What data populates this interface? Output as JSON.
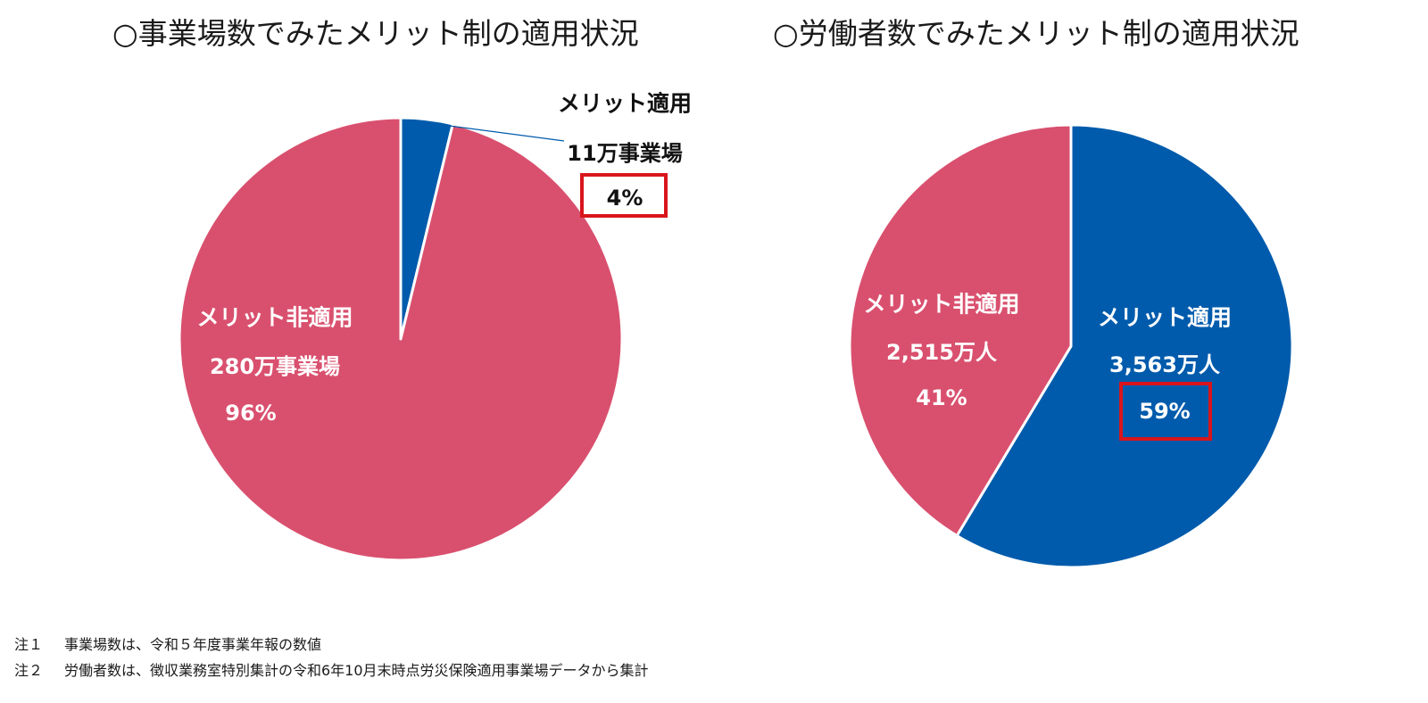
{
  "titles": {
    "left": "○事業場数でみたメリット制の適用状況",
    "right": "○労働者数でみたメリット制の適用状況"
  },
  "colors": {
    "applied": "#005BAC",
    "not_applied": "#D9506E",
    "highlight_box": "#D9151C",
    "text_on_slice": "#FFFFFF",
    "text_outside": "#111111"
  },
  "chart_data": [
    {
      "type": "pie",
      "title": "○事業場数でみたメリット制の適用状況",
      "slices": [
        {
          "label": "メリット適用",
          "value_label": "11万事業場",
          "value": 11,
          "percent_label": "4%",
          "percent": 4,
          "color": "#005BAC",
          "highlighted": true
        },
        {
          "label": "メリット非適用",
          "value_label": "280万事業場",
          "value": 280,
          "percent_label": "96%",
          "percent": 96,
          "color": "#D9506E",
          "highlighted": false
        }
      ]
    },
    {
      "type": "pie",
      "title": "○労働者数でみたメリット制の適用状況",
      "slices": [
        {
          "label": "メリット適用",
          "value_label": "3,563万人",
          "value": 3563,
          "percent_label": "59%",
          "percent": 59,
          "color": "#005BAC",
          "highlighted": true
        },
        {
          "label": "メリット非適用",
          "value_label": "2,515万人",
          "value": 2515,
          "percent_label": "41%",
          "percent": 41,
          "color": "#D9506E",
          "highlighted": false
        }
      ]
    }
  ],
  "notes": [
    {
      "key": "注１",
      "text": "事業場数は、令和５年度事業年報の数値"
    },
    {
      "key": "注２",
      "text": "労働者数は、徴収業務室特別集計の令和6年10月末時点労災保険適用事業場データから集計"
    }
  ]
}
